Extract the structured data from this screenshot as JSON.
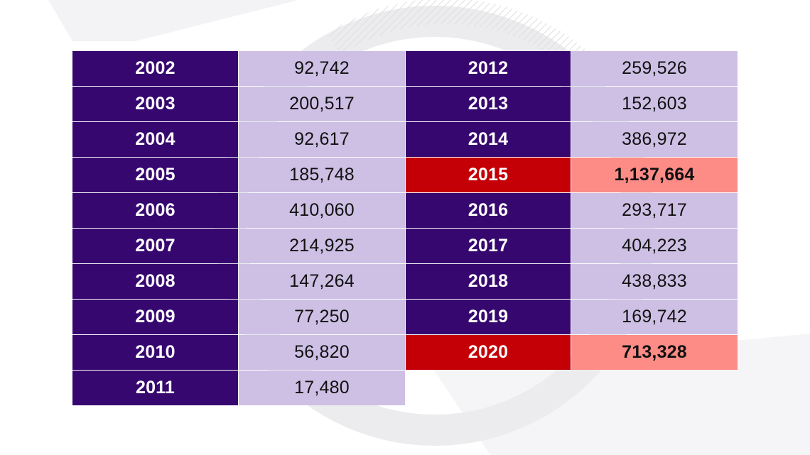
{
  "chart_data": {
    "type": "table",
    "colors": {
      "year_bg": "#36076f",
      "value_bg": "#cdc0e4",
      "highlight_year_bg": "#c40006",
      "highlight_value_bg": "#fd8b86"
    },
    "left_rows": [
      {
        "year": "2002",
        "value": "92,742",
        "highlight": false
      },
      {
        "year": "2003",
        "value": "200,517",
        "highlight": false
      },
      {
        "year": "2004",
        "value": "92,617",
        "highlight": false
      },
      {
        "year": "2005",
        "value": "185,748",
        "highlight": false
      },
      {
        "year": "2006",
        "value": "410,060",
        "highlight": false
      },
      {
        "year": "2007",
        "value": "214,925",
        "highlight": false
      },
      {
        "year": "2008",
        "value": "147,264",
        "highlight": false
      },
      {
        "year": "2009",
        "value": "77,250",
        "highlight": false
      },
      {
        "year": "2010",
        "value": "56,820",
        "highlight": false
      },
      {
        "year": "2011",
        "value": "17,480",
        "highlight": false
      }
    ],
    "right_rows": [
      {
        "year": "2012",
        "value": "259,526",
        "highlight": false
      },
      {
        "year": "2013",
        "value": "152,603",
        "highlight": false
      },
      {
        "year": "2014",
        "value": "386,972",
        "highlight": false
      },
      {
        "year": "2015",
        "value": "1,137,664",
        "highlight": true
      },
      {
        "year": "2016",
        "value": "293,717",
        "highlight": false
      },
      {
        "year": "2017",
        "value": "404,223",
        "highlight": false
      },
      {
        "year": "2018",
        "value": "438,833",
        "highlight": false
      },
      {
        "year": "2019",
        "value": "169,742",
        "highlight": false
      },
      {
        "year": "2020",
        "value": "713,328",
        "highlight": true
      }
    ]
  }
}
